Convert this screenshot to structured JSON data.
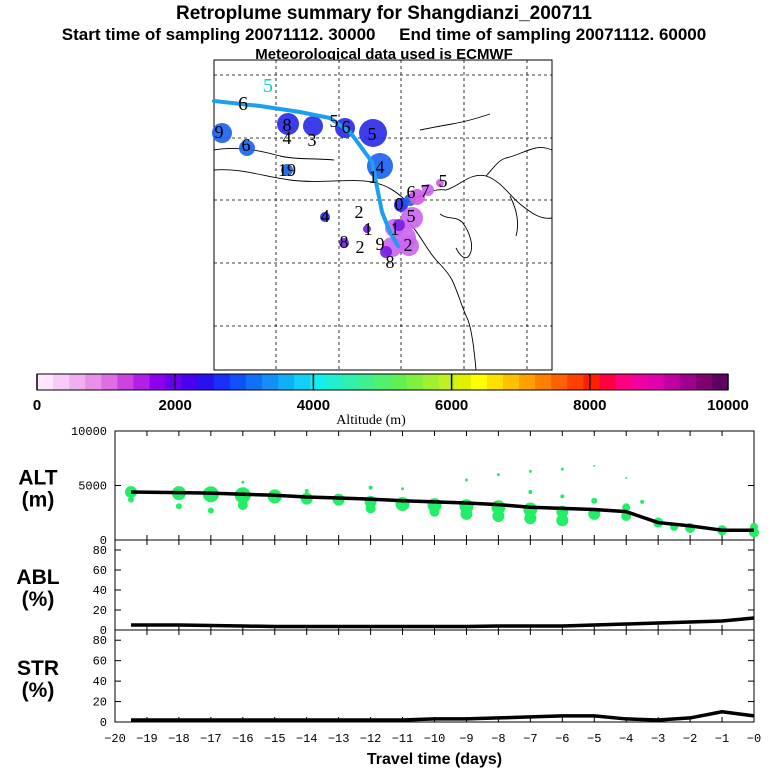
{
  "title": "Retroplume summary for Shangdianzi_200711",
  "subtitle": "Start time of sampling 20071112. 30000     End time of sampling 20071112. 60000",
  "subtitle2": "Meteorological data used is ECMWF",
  "map": {
    "description_free": true,
    "plume_colors": [
      "#1d63f2",
      "#2b2be8",
      "#1464e6",
      "#7a1ee3",
      "#cc66f0",
      "#d35be8"
    ],
    "labels": [
      {
        "t": "5",
        "c": "#00d0d0"
      },
      {
        "t": "6",
        "c": "#000"
      },
      {
        "t": "9",
        "c": "#000"
      },
      {
        "t": "8",
        "c": "#000"
      },
      {
        "t": "4",
        "c": "#000"
      },
      {
        "t": "3",
        "c": "#000"
      },
      {
        "t": "5",
        "c": "#000"
      },
      {
        "t": "6",
        "c": "#000"
      },
      {
        "t": "5",
        "c": "#000"
      },
      {
        "t": "6",
        "c": "#000"
      },
      {
        "t": "4",
        "c": "#000"
      },
      {
        "t": "1",
        "c": "#000"
      },
      {
        "t": "19",
        "c": "#000"
      },
      {
        "t": "4",
        "c": "#000"
      },
      {
        "t": "2",
        "c": "#000"
      },
      {
        "t": "1",
        "c": "#000"
      },
      {
        "t": "8",
        "c": "#000"
      },
      {
        "t": "2",
        "c": "#000"
      },
      {
        "t": "9",
        "c": "#000"
      },
      {
        "t": "2",
        "c": "#000"
      },
      {
        "t": "8",
        "c": "#000"
      },
      {
        "t": "6",
        "c": "#000"
      },
      {
        "t": "7",
        "c": "#000"
      },
      {
        "t": "5",
        "c": "#000"
      },
      {
        "t": "0",
        "c": "#000"
      },
      {
        "t": "1",
        "c": "#000"
      },
      {
        "t": "5",
        "c": "#000"
      }
    ]
  },
  "colorbar": {
    "title": "Altitude (m)",
    "ticks": [
      "0",
      "2000",
      "4000",
      "6000",
      "8000",
      "10000"
    ],
    "min": 0,
    "max": 10000,
    "colors": [
      "#ffe6ff",
      "#f8ccf8",
      "#f0b0f0",
      "#e890ea",
      "#dd6ee6",
      "#cc44e0",
      "#b020e6",
      "#8c00ee",
      "#6a00ee",
      "#4a00ee",
      "#2a10f0",
      "#1a30f8",
      "#1050f8",
      "#1070f8",
      "#1090f8",
      "#10b0f8",
      "#10d0f8",
      "#10f0f0",
      "#20f0d0",
      "#30f0b0",
      "#40f090",
      "#50f070",
      "#60f050",
      "#80f040",
      "#a0f030",
      "#c0f020",
      "#e0f000",
      "#ffff00",
      "#ffe000",
      "#ffc000",
      "#ffa000",
      "#ff8000",
      "#ff6000",
      "#ff4000",
      "#ff2000",
      "#ff0040",
      "#ff0080",
      "#f000a0",
      "#e000b0",
      "#c000a0",
      "#a00090",
      "#800070",
      "#600060"
    ]
  },
  "chart_data": [
    {
      "type": "line",
      "ylabel": "ALT\n(m)",
      "ylabel_line1": "ALT",
      "ylabel_line2": "(m)",
      "ylim": [
        0,
        10000
      ],
      "yticks": [
        "0",
        "5000",
        "10000"
      ],
      "xlim": [
        -20,
        0
      ],
      "x": [
        -19.5,
        -18,
        -17,
        -16,
        -15,
        -14,
        -13,
        -12,
        -11,
        -10,
        -9,
        -8,
        -7,
        -6,
        -5,
        -4,
        -3,
        -2,
        -1,
        0
      ],
      "values": [
        4400,
        4350,
        4300,
        4200,
        4100,
        3950,
        3850,
        3750,
        3600,
        3500,
        3400,
        3250,
        3000,
        2900,
        2800,
        2600,
        1600,
        1300,
        900,
        900
      ],
      "dots": [
        {
          "x": -19.5,
          "y": 4400,
          "s": 6
        },
        {
          "x": -19.5,
          "y": 3700,
          "s": 3
        },
        {
          "x": -18,
          "y": 4300,
          "s": 7
        },
        {
          "x": -18,
          "y": 3100,
          "s": 3
        },
        {
          "x": -17,
          "y": 4200,
          "s": 8
        },
        {
          "x": -17,
          "y": 2700,
          "s": 3
        },
        {
          "x": -16,
          "y": 4100,
          "s": 8
        },
        {
          "x": -16,
          "y": 3200,
          "s": 5
        },
        {
          "x": -16,
          "y": 5300,
          "s": 1.5
        },
        {
          "x": -15,
          "y": 4000,
          "s": 7
        },
        {
          "x": -14,
          "y": 3800,
          "s": 6
        },
        {
          "x": -14,
          "y": 4500,
          "s": 2
        },
        {
          "x": -13,
          "y": 3700,
          "s": 6
        },
        {
          "x": -12,
          "y": 3500,
          "s": 6
        },
        {
          "x": -12,
          "y": 2900,
          "s": 5
        },
        {
          "x": -12,
          "y": 4800,
          "s": 2
        },
        {
          "x": -11,
          "y": 3300,
          "s": 7
        },
        {
          "x": -11,
          "y": 4700,
          "s": 1.5
        },
        {
          "x": -10,
          "y": 3200,
          "s": 7
        },
        {
          "x": -10,
          "y": 2600,
          "s": 5
        },
        {
          "x": -9,
          "y": 3100,
          "s": 7
        },
        {
          "x": -9,
          "y": 2400,
          "s": 6
        },
        {
          "x": -9,
          "y": 5500,
          "s": 1.5
        },
        {
          "x": -8,
          "y": 3000,
          "s": 7
        },
        {
          "x": -8,
          "y": 2200,
          "s": 6
        },
        {
          "x": -8,
          "y": 6000,
          "s": 1.5
        },
        {
          "x": -7,
          "y": 2800,
          "s": 7
        },
        {
          "x": -7,
          "y": 2000,
          "s": 6
        },
        {
          "x": -7,
          "y": 4400,
          "s": 2
        },
        {
          "x": -7,
          "y": 6300,
          "s": 1.5
        },
        {
          "x": -6,
          "y": 2600,
          "s": 6
        },
        {
          "x": -6,
          "y": 1800,
          "s": 6
        },
        {
          "x": -6,
          "y": 4000,
          "s": 2
        },
        {
          "x": -6,
          "y": 6500,
          "s": 1.5
        },
        {
          "x": -5,
          "y": 2400,
          "s": 6
        },
        {
          "x": -5,
          "y": 3600,
          "s": 3
        },
        {
          "x": -5,
          "y": 6800,
          "s": 1
        },
        {
          "x": -4,
          "y": 2200,
          "s": 5
        },
        {
          "x": -4,
          "y": 3000,
          "s": 4
        },
        {
          "x": -4,
          "y": 5700,
          "s": 1
        },
        {
          "x": -3.5,
          "y": 3500,
          "s": 2
        },
        {
          "x": -3,
          "y": 1600,
          "s": 5
        },
        {
          "x": -2.5,
          "y": 1200,
          "s": 4
        },
        {
          "x": -2,
          "y": 1100,
          "s": 5
        },
        {
          "x": -1,
          "y": 900,
          "s": 5
        },
        {
          "x": 0,
          "y": 1200,
          "s": 4
        },
        {
          "x": 0,
          "y": 700,
          "s": 5
        }
      ]
    },
    {
      "type": "line",
      "ylabel_line1": "ABL",
      "ylabel_line2": "(%)",
      "ylim": [
        0,
        90
      ],
      "yticks": [
        "0",
        "20",
        "40",
        "60",
        "80"
      ],
      "xlim": [
        -20,
        0
      ],
      "x": [
        -19.5,
        -18,
        -17,
        -16,
        -15,
        -14,
        -13,
        -12,
        -11,
        -10,
        -9,
        -8,
        -7,
        -6,
        -5,
        -4,
        -3,
        -2,
        -1,
        0
      ],
      "values": [
        5,
        5,
        4.5,
        4,
        3.5,
        3.5,
        3.5,
        3.5,
        3.5,
        3.5,
        3.5,
        4,
        4,
        4,
        5,
        6,
        7,
        8,
        9,
        12
      ]
    },
    {
      "type": "line",
      "ylabel_line1": "STR",
      "ylabel_line2": "(%)",
      "ylim": [
        0,
        90
      ],
      "yticks": [
        "0",
        "20",
        "40",
        "60",
        "80"
      ],
      "xlim": [
        -20,
        0
      ],
      "x": [
        -19.5,
        -18,
        -17,
        -16,
        -15,
        -14,
        -13,
        -12,
        -11,
        -10,
        -9,
        -8,
        -7,
        -6,
        -5,
        -4,
        -3,
        -2,
        -1,
        0
      ],
      "values": [
        2,
        2,
        2,
        2,
        2,
        2,
        2,
        2,
        2,
        3,
        3,
        4,
        5,
        6,
        6,
        3,
        2,
        4,
        10,
        6
      ],
      "xlabel": "Travel time (days)",
      "xticks": [
        "−20",
        "−19",
        "−18",
        "−17",
        "−16",
        "−15",
        "−14",
        "−13",
        "−12",
        "−11",
        "−10",
        "−9",
        "−8",
        "−7",
        "−6",
        "−5",
        "−4",
        "−3",
        "−2",
        "−1",
        "−0"
      ],
      "xtick_values": [
        -20,
        -19,
        -18,
        -17,
        -16,
        -15,
        -14,
        -13,
        -12,
        -11,
        -10,
        -9,
        -8,
        -7,
        -6,
        -5,
        -4,
        -3,
        -2,
        -1,
        0
      ]
    }
  ],
  "dot_color": "#22ee66"
}
